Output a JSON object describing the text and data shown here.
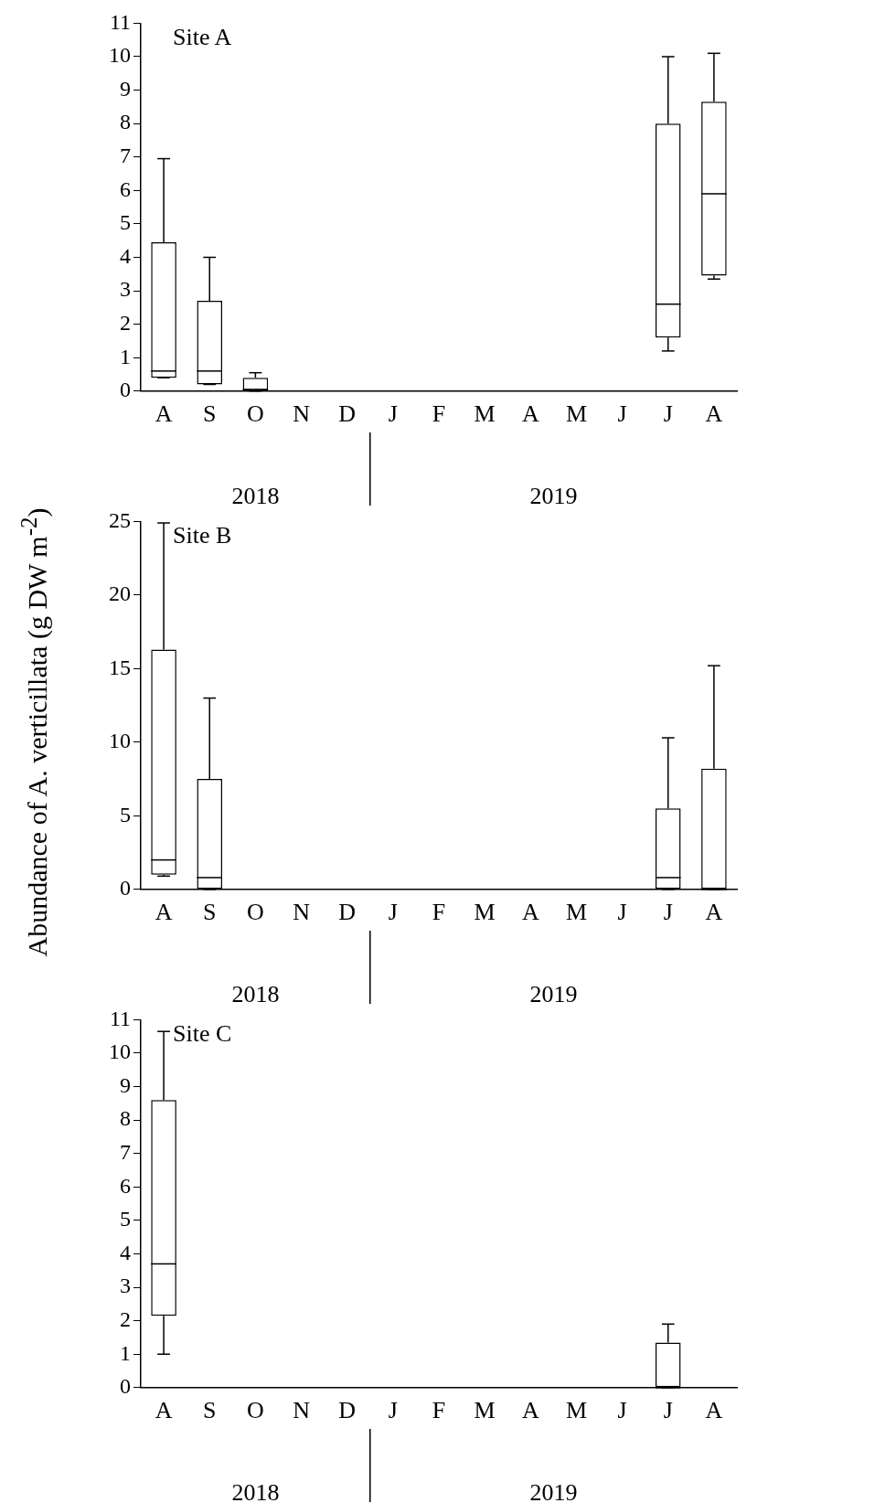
{
  "chart_data": [
    {
      "type": "box",
      "title": "Site A",
      "categories": [
        "A",
        "S",
        "O",
        "N",
        "D",
        "J",
        "F",
        "M",
        "A",
        "M",
        "J",
        "J",
        "A"
      ],
      "boxes": [
        {
          "low": 0.4,
          "q1": 0.4,
          "median": 0.6,
          "q3": 4.45,
          "high": 6.95
        },
        {
          "low": 0.2,
          "q1": 0.2,
          "median": 0.6,
          "q3": 2.7,
          "high": 4.0
        },
        {
          "low": 0,
          "q1": 0,
          "median": 0.05,
          "q3": 0.4,
          "high": 0.55
        },
        null,
        null,
        null,
        null,
        null,
        null,
        null,
        null,
        {
          "low": 1.2,
          "q1": 1.6,
          "median": 2.6,
          "q3": 8.0,
          "high": 10.0
        },
        {
          "low": 3.35,
          "q1": 3.45,
          "median": 5.9,
          "q3": 8.65,
          "high": 10.1
        }
      ],
      "ylim": [
        0,
        11
      ],
      "yticks": [
        0,
        1,
        2,
        3,
        4,
        5,
        6,
        7,
        8,
        9,
        10,
        11
      ],
      "annotations": [
        "2018",
        "2019"
      ]
    },
    {
      "type": "box",
      "title": "Site B",
      "ylabel": "Abundance of A. verticillata (g DW m$^{-2}$)",
      "categories": [
        "A",
        "S",
        "O",
        "N",
        "D",
        "J",
        "F",
        "M",
        "A",
        "M",
        "J",
        "J",
        "A"
      ],
      "boxes": [
        {
          "low": 0.9,
          "q1": 1.0,
          "median": 2.0,
          "q3": 16.3,
          "high": 24.9
        },
        {
          "low": 0,
          "q1": 0,
          "median": 0.8,
          "q3": 7.5,
          "high": 13.0
        },
        null,
        null,
        null,
        null,
        null,
        null,
        null,
        null,
        null,
        {
          "low": 0,
          "q1": 0,
          "median": 0.8,
          "q3": 5.5,
          "high": 10.3
        },
        {
          "low": 0,
          "q1": 0,
          "median": 0,
          "q3": 8.2,
          "high": 15.2
        }
      ],
      "ylim": [
        0,
        25
      ],
      "yticks": [
        0,
        5,
        10,
        15,
        20,
        25
      ],
      "annotations": [
        "2018",
        "2019"
      ]
    },
    {
      "type": "box",
      "title": "Site C",
      "categories": [
        "A",
        "S",
        "O",
        "N",
        "D",
        "J",
        "F",
        "M",
        "A",
        "M",
        "J",
        "J",
        "A"
      ],
      "boxes": [
        {
          "low": 1.0,
          "q1": 2.15,
          "median": 3.7,
          "q3": 8.6,
          "high": 10.65
        },
        null,
        null,
        null,
        null,
        null,
        null,
        null,
        null,
        null,
        null,
        {
          "low": 0,
          "q1": 0,
          "median": 0,
          "q3": 1.35,
          "high": 1.9
        },
        null
      ],
      "ylim": [
        0,
        11
      ],
      "yticks": [
        0,
        1,
        2,
        3,
        4,
        5,
        6,
        7,
        8,
        9,
        10,
        11
      ],
      "annotations": [
        "2018",
        "2019"
      ]
    }
  ]
}
